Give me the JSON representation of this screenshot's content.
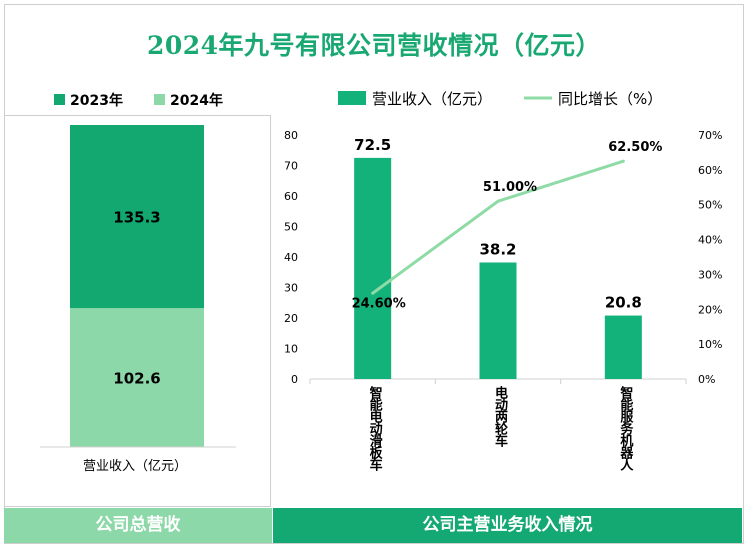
{
  "title": "2024年九号有限公司营收情况（亿元）",
  "left_chart": {
    "legend": [
      {
        "label": "2023年",
        "color": "#13a86f"
      },
      {
        "label": "2024年",
        "color": "#8cd8a8"
      }
    ],
    "xlabel": "营业收入（亿元）",
    "footer": "公司总营收"
  },
  "right_chart": {
    "legend_bar": "营业收入（亿元）",
    "legend_line": "同比增长（%）",
    "footer": "公司主营业务收入情况"
  },
  "chart_data": [
    {
      "type": "bar",
      "stacked": true,
      "categories": [
        "营业收入（亿元）"
      ],
      "series": [
        {
          "name": "2023年",
          "values": [
            135.3
          ],
          "color": "#13a86f"
        },
        {
          "name": "2024年",
          "values": [
            102.6
          ],
          "color": "#8cd8a8"
        }
      ],
      "legend_position": "top"
    },
    {
      "type": "bar+line",
      "categories": [
        "智能电动滑板车",
        "电动两轮车",
        "智能服务机器人"
      ],
      "series": [
        {
          "name": "营业收入（亿元）",
          "type": "bar",
          "values": [
            72.5,
            38.2,
            20.8
          ],
          "color": "#13b27a",
          "axis": "left"
        },
        {
          "name": "同比增长（%）",
          "type": "line",
          "values": [
            24.6,
            51.0,
            62.5
          ],
          "color": "#8fdba6",
          "axis": "right"
        }
      ],
      "data_labels_bar": [
        "72.5",
        "38.2",
        "20.8"
      ],
      "data_labels_line": [
        "24.60%",
        "51.00%",
        "62.50%"
      ],
      "y_left": {
        "range": [
          0,
          80
        ],
        "ticks": [
          "0",
          "10",
          "20",
          "30",
          "40",
          "50",
          "60",
          "70",
          "80"
        ]
      },
      "y_right": {
        "range": [
          0,
          70
        ],
        "ticks": [
          "0%",
          "10%",
          "20%",
          "30%",
          "40%",
          "50%",
          "60%",
          "70%"
        ]
      },
      "legend_position": "top",
      "grid": false
    }
  ]
}
